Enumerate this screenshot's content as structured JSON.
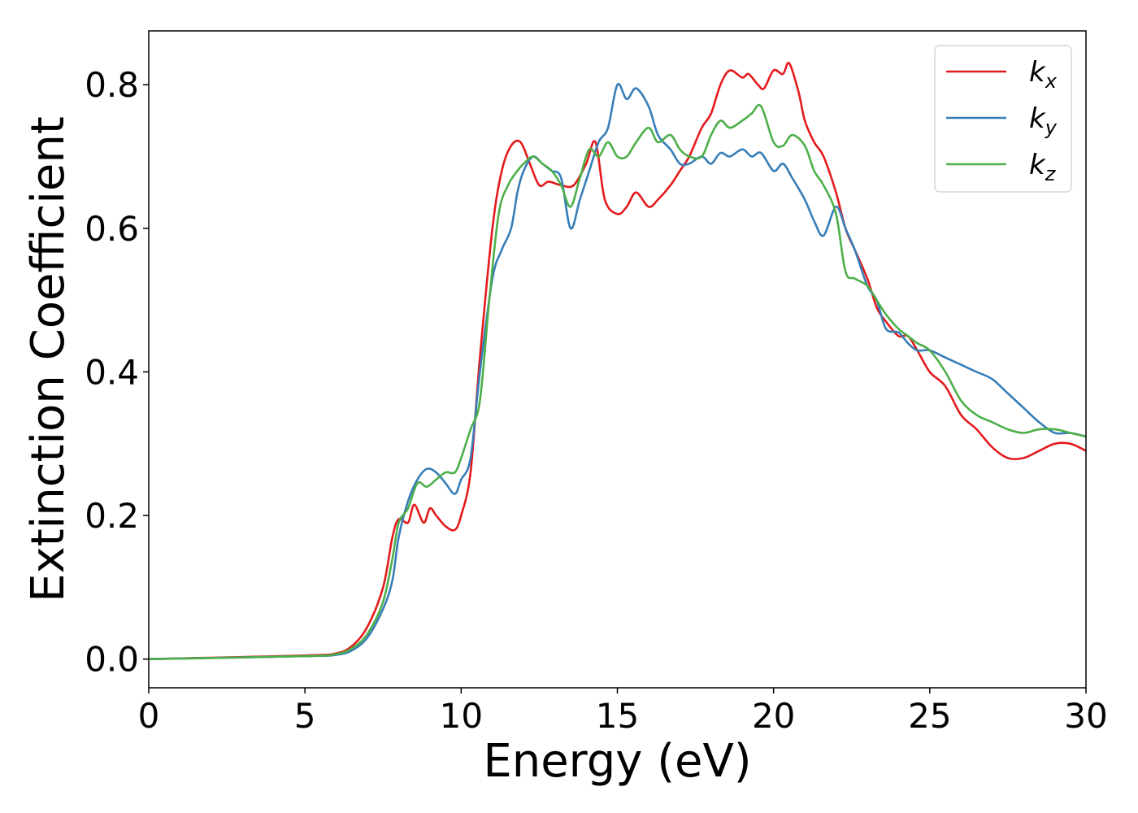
{
  "chart_data": {
    "type": "line",
    "xlabel": "Energy (eV)",
    "ylabel": "Extinction Coefficient",
    "xlim": [
      0,
      30
    ],
    "ylim": [
      -0.04,
      0.875
    ],
    "xticks": [
      0,
      5,
      10,
      15,
      20,
      25,
      30
    ],
    "xtick_labels": [
      "0",
      "5",
      "10",
      "15",
      "20",
      "25",
      "30"
    ],
    "yticks": [
      0.0,
      0.2,
      0.4,
      0.6,
      0.8
    ],
    "ytick_labels": [
      "0.0",
      "0.2",
      "0.4",
      "0.6",
      "0.8"
    ],
    "grid": false,
    "legend_position": "top-right",
    "series": [
      {
        "name": "k",
        "subscript": "x",
        "color": "#e41a1c",
        "x": [
          0,
          5,
          6,
          6.5,
          7,
          7.5,
          7.8,
          8.0,
          8.3,
          8.5,
          8.8,
          9.0,
          9.2,
          9.5,
          9.8,
          10.0,
          10.3,
          10.6,
          11.0,
          11.3,
          11.6,
          11.9,
          12.2,
          12.5,
          12.8,
          13.2,
          13.6,
          14.0,
          14.3,
          14.6,
          15.0,
          15.3,
          15.6,
          16.0,
          16.3,
          16.7,
          17.0,
          17.3,
          17.7,
          18.0,
          18.3,
          18.6,
          19.0,
          19.2,
          19.5,
          19.7,
          20.0,
          20.3,
          20.5,
          20.8,
          21.0,
          21.3,
          21.6,
          22.0,
          22.3,
          22.6,
          23.0,
          23.3,
          23.6,
          24.0,
          24.3,
          24.6,
          25.0,
          25.5,
          26.0,
          26.5,
          27.0,
          27.5,
          28.0,
          28.5,
          29.0,
          29.5,
          30.0
        ],
        "y": [
          0.0,
          0.005,
          0.008,
          0.018,
          0.045,
          0.1,
          0.17,
          0.195,
          0.19,
          0.215,
          0.19,
          0.21,
          0.2,
          0.185,
          0.18,
          0.2,
          0.26,
          0.42,
          0.6,
          0.68,
          0.715,
          0.72,
          0.69,
          0.66,
          0.665,
          0.66,
          0.66,
          0.69,
          0.72,
          0.64,
          0.62,
          0.63,
          0.65,
          0.63,
          0.64,
          0.66,
          0.68,
          0.7,
          0.74,
          0.76,
          0.8,
          0.82,
          0.81,
          0.815,
          0.8,
          0.795,
          0.82,
          0.815,
          0.83,
          0.79,
          0.75,
          0.72,
          0.7,
          0.65,
          0.6,
          0.57,
          0.53,
          0.49,
          0.47,
          0.45,
          0.45,
          0.43,
          0.4,
          0.38,
          0.34,
          0.32,
          0.295,
          0.28,
          0.28,
          0.29,
          0.3,
          0.3,
          0.29
        ]
      },
      {
        "name": "k",
        "subscript": "y",
        "color": "#377eb8",
        "x": [
          0,
          5,
          6,
          6.5,
          7,
          7.5,
          7.8,
          8.0,
          8.3,
          8.6,
          8.9,
          9.2,
          9.5,
          9.8,
          10.0,
          10.3,
          10.6,
          11.0,
          11.3,
          11.6,
          11.8,
          12.0,
          12.3,
          12.6,
          12.9,
          13.2,
          13.5,
          13.8,
          14.1,
          14.4,
          14.7,
          15.0,
          15.3,
          15.6,
          16.0,
          16.3,
          16.7,
          17.0,
          17.3,
          17.7,
          18.0,
          18.3,
          18.6,
          19.0,
          19.3,
          19.6,
          20.0,
          20.3,
          20.6,
          21.0,
          21.3,
          21.6,
          22.0,
          22.3,
          22.6,
          23.0,
          23.3,
          23.6,
          24.0,
          24.3,
          24.6,
          25.0,
          25.5,
          26.0,
          26.5,
          27.0,
          27.5,
          28.0,
          28.5,
          29.0,
          29.5,
          30.0
        ],
        "y": [
          0.0,
          0.004,
          0.006,
          0.012,
          0.03,
          0.07,
          0.11,
          0.17,
          0.22,
          0.25,
          0.265,
          0.26,
          0.245,
          0.23,
          0.25,
          0.28,
          0.4,
          0.53,
          0.57,
          0.6,
          0.65,
          0.68,
          0.7,
          0.69,
          0.68,
          0.67,
          0.6,
          0.64,
          0.68,
          0.72,
          0.74,
          0.8,
          0.78,
          0.795,
          0.77,
          0.73,
          0.71,
          0.69,
          0.69,
          0.7,
          0.69,
          0.705,
          0.7,
          0.71,
          0.7,
          0.705,
          0.68,
          0.69,
          0.67,
          0.64,
          0.61,
          0.59,
          0.63,
          0.6,
          0.57,
          0.52,
          0.5,
          0.46,
          0.455,
          0.44,
          0.43,
          0.43,
          0.42,
          0.41,
          0.4,
          0.39,
          0.37,
          0.35,
          0.33,
          0.315,
          0.315,
          0.31
        ]
      },
      {
        "name": "k",
        "subscript": "z",
        "color": "#4daf4a",
        "x": [
          0,
          5,
          6,
          6.5,
          7,
          7.5,
          7.8,
          8.0,
          8.3,
          8.6,
          8.9,
          9.2,
          9.5,
          9.8,
          10.0,
          10.3,
          10.6,
          10.9,
          11.2,
          11.5,
          11.8,
          12.0,
          12.3,
          12.6,
          12.9,
          13.2,
          13.5,
          13.8,
          14.1,
          14.4,
          14.7,
          15.0,
          15.3,
          15.6,
          16.0,
          16.3,
          16.7,
          17.0,
          17.3,
          17.7,
          18.0,
          18.3,
          18.6,
          19.0,
          19.3,
          19.6,
          20.0,
          20.3,
          20.6,
          21.0,
          21.3,
          21.6,
          22.0,
          22.3,
          22.6,
          23.0,
          23.3,
          23.6,
          24.0,
          24.3,
          24.6,
          25.0,
          25.5,
          26.0,
          26.5,
          27.0,
          27.5,
          28.0,
          28.5,
          29.0,
          29.5,
          30.0
        ],
        "y": [
          0.0,
          0.004,
          0.007,
          0.015,
          0.035,
          0.08,
          0.14,
          0.19,
          0.21,
          0.245,
          0.24,
          0.25,
          0.26,
          0.26,
          0.28,
          0.32,
          0.36,
          0.5,
          0.62,
          0.66,
          0.68,
          0.69,
          0.7,
          0.69,
          0.68,
          0.66,
          0.63,
          0.67,
          0.71,
          0.7,
          0.72,
          0.7,
          0.7,
          0.72,
          0.74,
          0.72,
          0.73,
          0.71,
          0.7,
          0.7,
          0.73,
          0.75,
          0.74,
          0.75,
          0.76,
          0.77,
          0.72,
          0.715,
          0.73,
          0.715,
          0.68,
          0.66,
          0.62,
          0.54,
          0.53,
          0.52,
          0.5,
          0.48,
          0.46,
          0.45,
          0.44,
          0.43,
          0.4,
          0.36,
          0.34,
          0.33,
          0.32,
          0.315,
          0.32,
          0.32,
          0.315,
          0.31
        ]
      }
    ]
  }
}
